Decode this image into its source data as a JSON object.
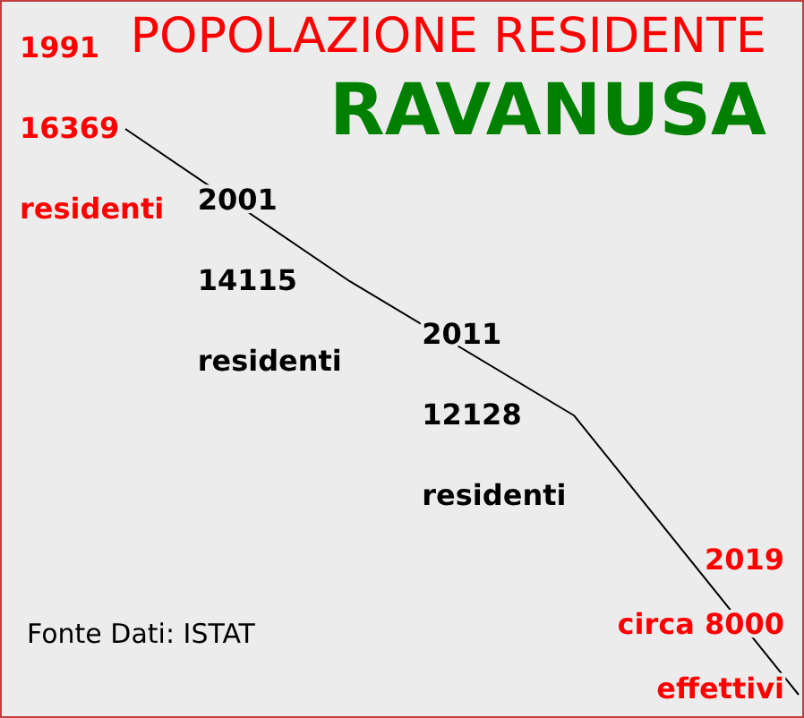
{
  "chart_data": {
    "type": "line",
    "title": "POPOLAZIONE RESIDENTE",
    "subtitle": "RAVANUSA",
    "categories": [
      null,
      null,
      null,
      null
    ],
    "values": [
      16369,
      14115,
      12128,
      8000
    ],
    "color": "#000000",
    "colors": [
      "#ff0000",
      "#000000",
      "#000000",
      "#ff0000"
    ],
    "value_labels": [
      "16369",
      "14115",
      "12128",
      "circa 8000"
    ],
    "annotations": [
      "1991",
      "residenti",
      "2001",
      "residenti",
      "2011",
      "residenti",
      "2019",
      "effettivi",
      "Fonte Dati: ISTAT"
    ],
    "marker": "none",
    "grid": false,
    "legend": false
  }
}
